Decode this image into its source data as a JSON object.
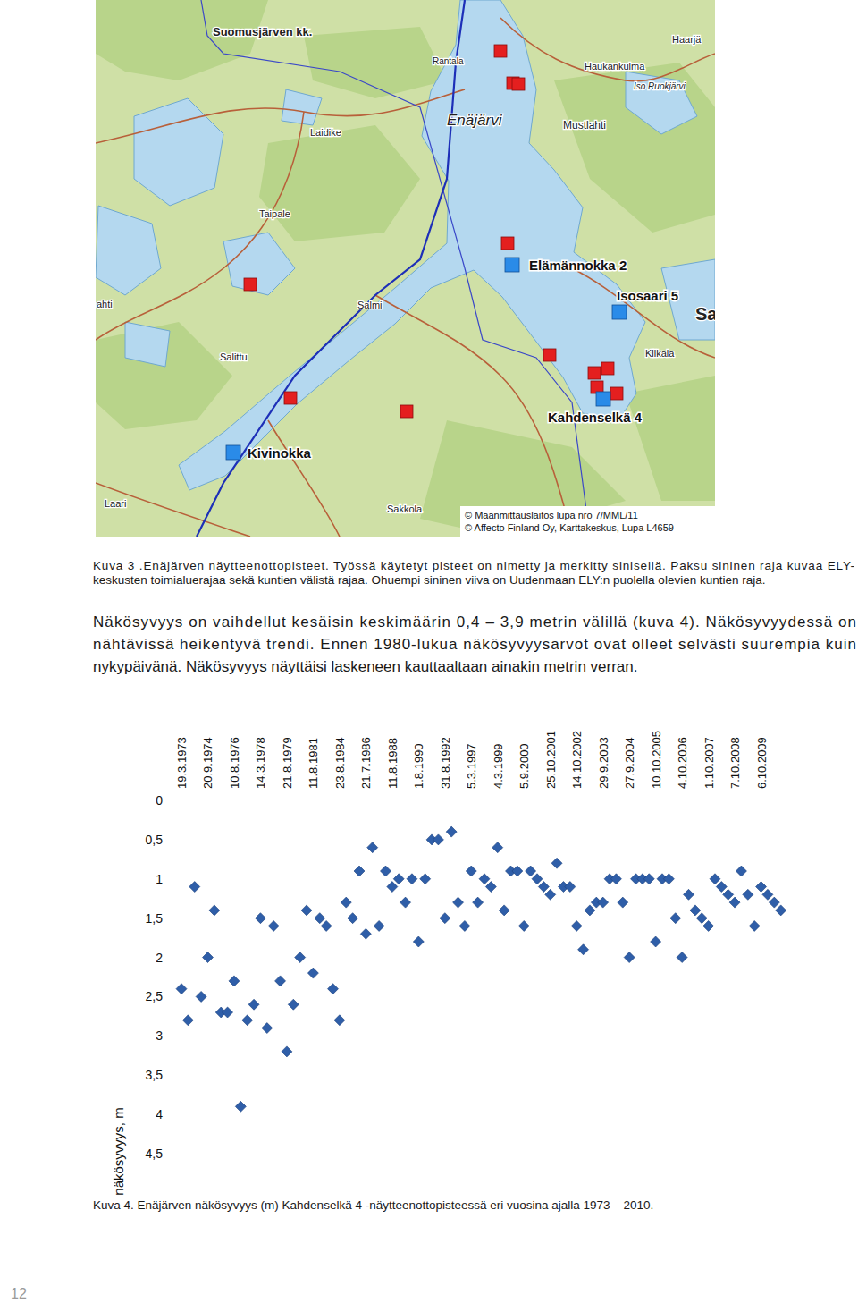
{
  "map": {
    "place_labels": [
      "Suomusjärven kk.",
      "Rantala",
      "Haarjä",
      "Haukankulma",
      "Iso Ruokjärvi",
      "Enäjärvi",
      "Mustlahti",
      "Laidike",
      "Taipale",
      "Salmi",
      "Kiikala",
      "Salittu",
      "ahti",
      "Laari",
      "Sakkola",
      "Sa"
    ],
    "sites": [
      "Elämännokka 2",
      "Isosaari 5",
      "Kahdenselkä 4",
      "Kivinokka"
    ],
    "copyright": [
      "© Maanmittauslaitos lupa nro 7/MML/11",
      "© Affecto Finland Oy, Karttakeskus, Lupa L4659"
    ]
  },
  "caption_3": [
    "Kuva 3 .Enäjärven näytteenottopisteet. Työssä käytetyt pisteet on nimetty ja merkitty sinisellä. Paksu sininen raja kuvaa ELY-",
    "keskusten toimialuerajaa sekä kuntien välistä rajaa. Ohuempi sininen viiva on Uudenmaan ELY:n puolella olevien kuntien raja."
  ],
  "paragraph": [
    "Näkösyvyys on vaihdellut kesäisin keskimäärin 0,4 – 3,9 metrin välillä (kuva 4). Näkösyvyydessä on",
    "nähtävissä heikentyvä trendi. Ennen 1980-lukua näkösyvyysarvot ovat olleet selvästi suurempia kuin",
    "nykypäivänä. Näkösyvyys näyttäisi laskeneen kauttaaltaan ainakin metrin verran."
  ],
  "chart_data": {
    "type": "scatter",
    "y_label": "näkösyvyys, m",
    "marker": "diamond",
    "color": "#2f5ea8",
    "grid": false,
    "categories": [
      "19.3.1973",
      null,
      null,
      null,
      "20.9.1974",
      null,
      null,
      null,
      "10.8.1976",
      null,
      null,
      null,
      "14.3.1978",
      null,
      null,
      null,
      "21.8.1979",
      null,
      null,
      null,
      "11.8.1981",
      null,
      null,
      null,
      "23.8.1984",
      null,
      null,
      null,
      "21.7.1986",
      null,
      null,
      null,
      "11.8.1988",
      null,
      null,
      null,
      "1.8.1990",
      null,
      null,
      null,
      "31.8.1992",
      null,
      null,
      null,
      "5.3.1997",
      null,
      null,
      null,
      "4.3.1999",
      null,
      null,
      null,
      "5.9.2000",
      null,
      null,
      null,
      "25.10.2001",
      null,
      null,
      null,
      "14.10.2002",
      null,
      null,
      null,
      "29.9.2003",
      null,
      null,
      null,
      "27.9.2004",
      null,
      null,
      null,
      "10.10.2005",
      null,
      null,
      null,
      "4.10.2006",
      null,
      null,
      null,
      "1.10.2007",
      null,
      null,
      null,
      "7.10.2008",
      null,
      null,
      null,
      "6.10.2009",
      null,
      null,
      null
    ],
    "values": [
      2.4,
      2.8,
      1.1,
      2.5,
      2.0,
      1.4,
      2.7,
      2.7,
      2.3,
      3.9,
      2.8,
      2.6,
      1.5,
      2.9,
      1.6,
      2.3,
      3.2,
      2.6,
      2.0,
      1.4,
      2.2,
      1.5,
      1.6,
      2.4,
      2.8,
      1.3,
      1.5,
      0.9,
      1.7,
      0.6,
      1.6,
      0.9,
      1.1,
      1.0,
      1.3,
      1.0,
      1.8,
      1.0,
      0.5,
      0.5,
      1.5,
      0.4,
      1.3,
      1.6,
      0.9,
      1.3,
      1.0,
      1.1,
      0.6,
      1.4,
      0.9,
      0.9,
      1.6,
      0.9,
      1.0,
      1.1,
      1.2,
      0.8,
      1.1,
      1.1,
      1.6,
      1.9,
      1.4,
      1.3,
      1.3,
      1.0,
      1.0,
      1.3,
      2.0,
      1.0,
      1.0,
      1.0,
      1.8,
      1.0,
      1.0,
      1.5,
      2.0,
      1.2,
      1.4,
      1.5,
      1.6,
      1.0,
      1.1,
      1.2,
      1.3,
      0.9,
      1.2,
      1.6,
      1.1,
      1.2,
      1.3,
      1.4
    ],
    "ylim": [
      4.5,
      0
    ],
    "yticks": [
      0,
      {
        "value": 0.5,
        "label": "0,5"
      },
      1,
      {
        "value": 1.5,
        "label": "1,5"
      },
      2,
      {
        "value": 2.5,
        "label": "2,5"
      },
      3,
      {
        "value": 3.5,
        "label": "3,5"
      },
      4,
      {
        "value": 4.5,
        "label": "4,5"
      }
    ]
  },
  "caption_4": "Kuva 4. Enäjärven näkösyvyys (m) Kahdenselkä 4 -näytteenottopisteessä eri vuosina ajalla 1973 – 2010.",
  "page_number": "12"
}
